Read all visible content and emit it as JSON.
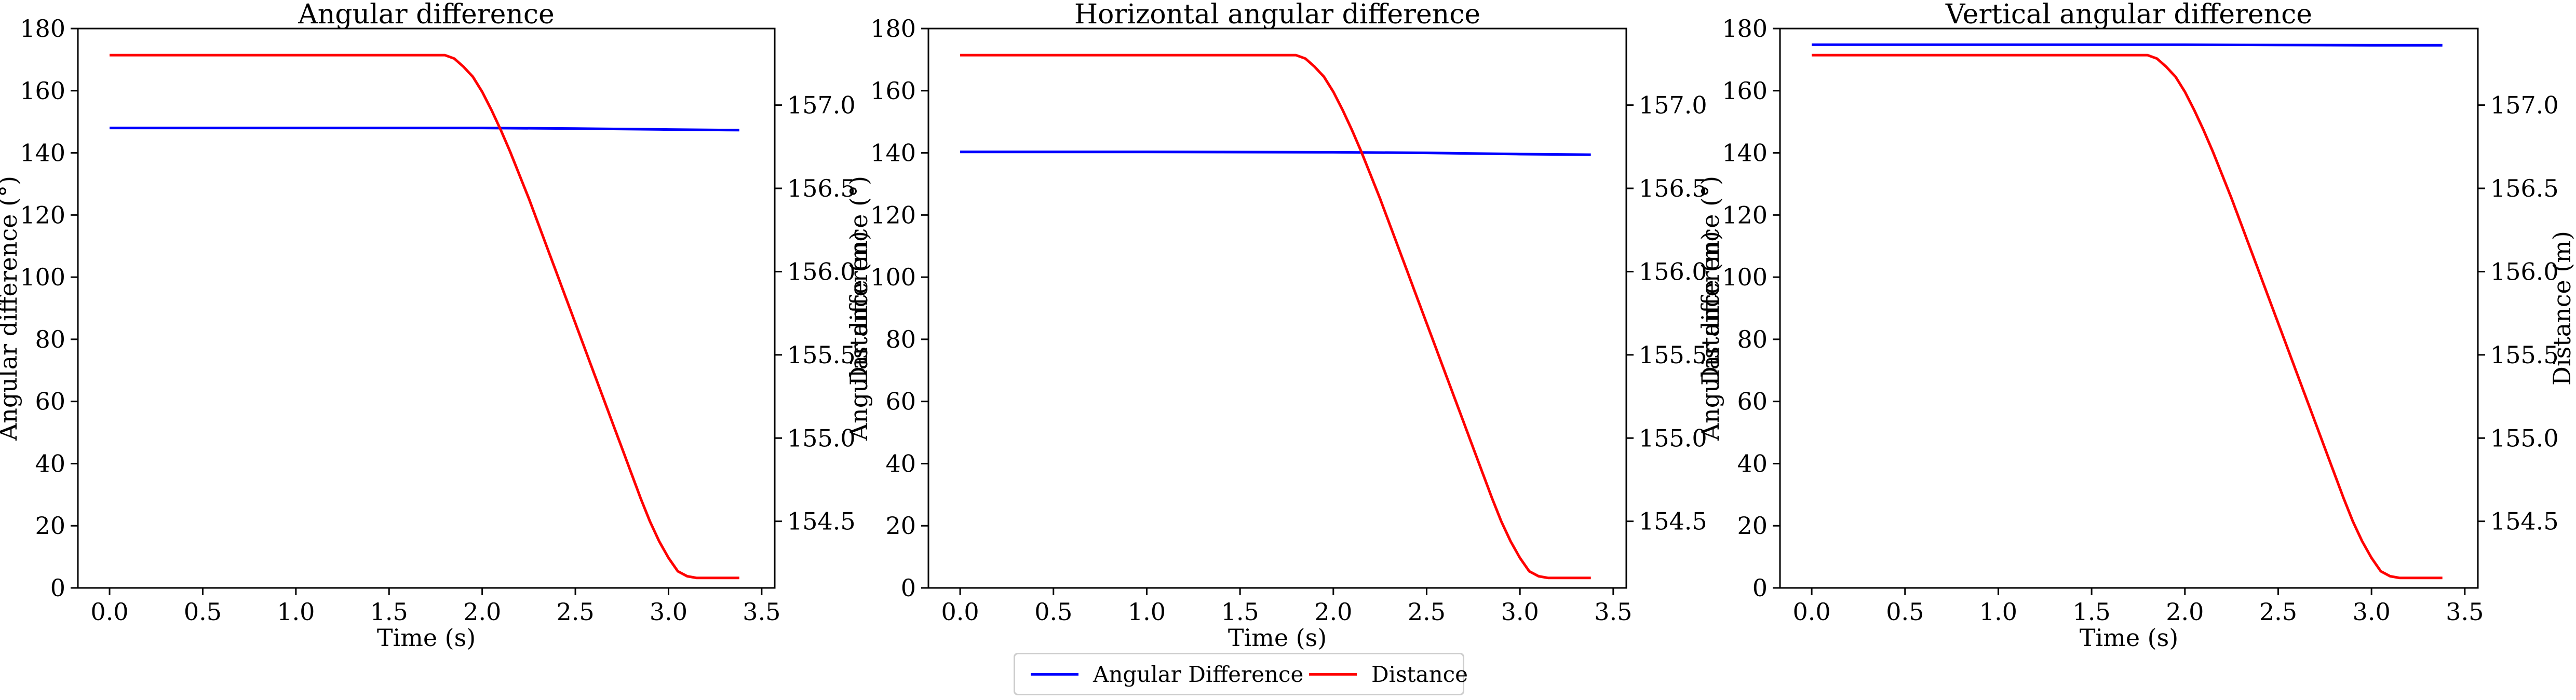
{
  "colors": {
    "angular": "#0000ff",
    "distance": "#ff0000"
  },
  "legend": {
    "angular_label": "Angular Difference",
    "distance_label": "Distance",
    "placement": "bottom-center"
  },
  "chart_data": [
    {
      "type": "line",
      "title": "Angular difference",
      "xlabel": "Time (s)",
      "ylabel": "Angular difference (°)",
      "y2label": "Distance (m)",
      "xlim": [
        -0.17,
        3.57
      ],
      "ylim": [
        0,
        180
      ],
      "y2lim": [
        154.1,
        157.46
      ],
      "xticks": [
        "0.0",
        "0.5",
        "1.0",
        "1.5",
        "2.0",
        "2.5",
        "3.0",
        "3.5"
      ],
      "yticks": [
        "0",
        "20",
        "40",
        "60",
        "80",
        "100",
        "120",
        "140",
        "160",
        "180"
      ],
      "y2ticks": [
        "154.5",
        "155.0",
        "155.5",
        "156.0",
        "156.5",
        "157.0"
      ],
      "series": [
        {
          "name": "Angular Difference",
          "axis": "left",
          "x": [
            0,
            1.0,
            2.0,
            2.5,
            3.0,
            3.38
          ],
          "y": [
            148,
            148,
            148,
            147.8,
            147.5,
            147.3
          ]
        },
        {
          "name": "Distance",
          "axis": "right",
          "x": [
            0,
            1.0,
            1.8,
            1.85,
            1.9,
            1.95,
            2.0,
            2.05,
            2.1,
            2.15,
            2.2,
            2.25,
            2.3,
            2.35,
            2.4,
            2.45,
            2.5,
            2.55,
            2.6,
            2.65,
            2.7,
            2.75,
            2.8,
            2.85,
            2.9,
            2.95,
            3.0,
            3.05,
            3.1,
            3.15,
            3.2,
            3.25,
            3.3,
            3.38
          ],
          "y": [
            157.3,
            157.3,
            157.3,
            157.28,
            157.23,
            157.17,
            157.08,
            156.97,
            156.85,
            156.72,
            156.58,
            156.44,
            156.29,
            156.14,
            155.99,
            155.84,
            155.69,
            155.54,
            155.39,
            155.24,
            155.09,
            154.94,
            154.79,
            154.64,
            154.5,
            154.38,
            154.28,
            154.2,
            154.17,
            154.16,
            154.16,
            154.16,
            154.16,
            154.16
          ]
        }
      ]
    },
    {
      "type": "line",
      "title": "Horizontal angular difference",
      "xlabel": "Time (s)",
      "ylabel": "Angular difference (°)",
      "y2label": "Distance (m)",
      "xlim": [
        -0.17,
        3.57
      ],
      "ylim": [
        0,
        180
      ],
      "y2lim": [
        154.1,
        157.46
      ],
      "xticks": [
        "0.0",
        "0.5",
        "1.0",
        "1.5",
        "2.0",
        "2.5",
        "3.0",
        "3.5"
      ],
      "yticks": [
        "0",
        "20",
        "40",
        "60",
        "80",
        "100",
        "120",
        "140",
        "160",
        "180"
      ],
      "y2ticks": [
        "154.5",
        "155.0",
        "155.5",
        "156.0",
        "156.5",
        "157.0"
      ],
      "series": [
        {
          "name": "Angular Difference",
          "axis": "left",
          "x": [
            0,
            1.0,
            2.0,
            2.5,
            3.0,
            3.38
          ],
          "y": [
            140.3,
            140.3,
            140.2,
            140.0,
            139.6,
            139.4
          ]
        },
        {
          "name": "Distance",
          "axis": "right",
          "x": [
            0,
            1.0,
            1.8,
            1.85,
            1.9,
            1.95,
            2.0,
            2.05,
            2.1,
            2.15,
            2.2,
            2.25,
            2.3,
            2.35,
            2.4,
            2.45,
            2.5,
            2.55,
            2.6,
            2.65,
            2.7,
            2.75,
            2.8,
            2.85,
            2.9,
            2.95,
            3.0,
            3.05,
            3.1,
            3.15,
            3.2,
            3.25,
            3.3,
            3.38
          ],
          "y": [
            157.3,
            157.3,
            157.3,
            157.28,
            157.23,
            157.17,
            157.08,
            156.97,
            156.85,
            156.72,
            156.58,
            156.44,
            156.29,
            156.14,
            155.99,
            155.84,
            155.69,
            155.54,
            155.39,
            155.24,
            155.09,
            154.94,
            154.79,
            154.64,
            154.5,
            154.38,
            154.28,
            154.2,
            154.17,
            154.16,
            154.16,
            154.16,
            154.16,
            154.16
          ]
        }
      ]
    },
    {
      "type": "line",
      "title": "Vertical angular difference",
      "xlabel": "Time (s)",
      "ylabel": "Angular difference (°)",
      "y2label": "Distance (m)",
      "xlim": [
        -0.17,
        3.57
      ],
      "ylim": [
        0,
        180
      ],
      "y2lim": [
        154.1,
        157.46
      ],
      "xticks": [
        "0.0",
        "0.5",
        "1.0",
        "1.5",
        "2.0",
        "2.5",
        "3.0",
        "3.5"
      ],
      "yticks": [
        "0",
        "20",
        "40",
        "60",
        "80",
        "100",
        "120",
        "140",
        "160",
        "180"
      ],
      "y2ticks": [
        "154.5",
        "155.0",
        "155.5",
        "156.0",
        "156.5",
        "157.0"
      ],
      "series": [
        {
          "name": "Angular Difference",
          "axis": "left",
          "x": [
            0,
            1.0,
            2.0,
            2.5,
            3.0,
            3.38
          ],
          "y": [
            174.8,
            174.8,
            174.8,
            174.7,
            174.6,
            174.6
          ]
        },
        {
          "name": "Distance",
          "axis": "right",
          "x": [
            0,
            1.0,
            1.8,
            1.85,
            1.9,
            1.95,
            2.0,
            2.05,
            2.1,
            2.15,
            2.2,
            2.25,
            2.3,
            2.35,
            2.4,
            2.45,
            2.5,
            2.55,
            2.6,
            2.65,
            2.7,
            2.75,
            2.8,
            2.85,
            2.9,
            2.95,
            3.0,
            3.05,
            3.1,
            3.15,
            3.2,
            3.25,
            3.3,
            3.38
          ],
          "y": [
            157.3,
            157.3,
            157.3,
            157.28,
            157.23,
            157.17,
            157.08,
            156.97,
            156.85,
            156.72,
            156.58,
            156.44,
            156.29,
            156.14,
            155.99,
            155.84,
            155.69,
            155.54,
            155.39,
            155.24,
            155.09,
            154.94,
            154.79,
            154.64,
            154.5,
            154.38,
            154.28,
            154.2,
            154.17,
            154.16,
            154.16,
            154.16,
            154.16,
            154.16
          ]
        }
      ]
    }
  ]
}
